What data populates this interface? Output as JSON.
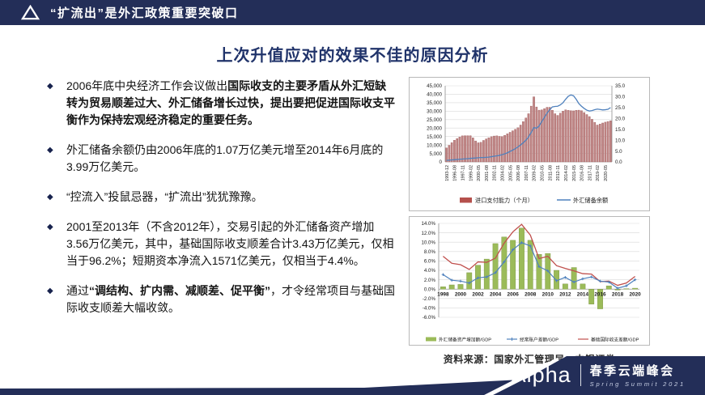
{
  "topbar": {
    "title": "“扩流出”是外汇政策重要突破口"
  },
  "page": {
    "title": "上次升值应对的效果不佳的原因分析",
    "source": "资料来源：国家外汇管理局，中银证券"
  },
  "bullets": [
    {
      "segments": [
        {
          "text": "2006年底中央经济工作会议做出",
          "bold": false
        },
        {
          "text": "国际收支的主要矛盾从外汇短缺转为贸易顺差过大、外汇储备增长过快，提出要把促进国际收支平衡作为保持宏观经济稳定的重要任务。",
          "bold": true
        }
      ]
    },
    {
      "segments": [
        {
          "text": "外汇储备余额仍由2006年底的1.07万亿美元增至2014年6月底的3.99万亿美元。",
          "bold": false
        }
      ]
    },
    {
      "segments": [
        {
          "text": "“控流入”投鼠忌器，“扩流出”犹犹豫豫。",
          "bold": false
        }
      ]
    },
    {
      "segments": [
        {
          "text": "2001至2013年（不含2012年），交易引起的外汇储备资产增加3.56万亿美元，其中，基础国际收支顺差合计3.43万亿美元，仅相当于96.2%；短期资本净流入1571亿美元，仅相当于4.4%。",
          "bold": false
        }
      ]
    },
    {
      "segments": [
        {
          "text": "通过",
          "bold": false
        },
        {
          "text": "“调结构、扩内需、减顺差、促平衡”",
          "bold": true
        },
        {
          "text": "，才令经常项目与基础国际收支顺差大幅收敛。",
          "bold": false
        }
      ]
    }
  ],
  "chart_data": [
    {
      "type": "bar+line",
      "title": "",
      "left_axis": {
        "min": 0,
        "max": 45000,
        "step": 5000
      },
      "right_axis": {
        "min": 0,
        "max": 35,
        "step": 5
      },
      "x_tick_labels": [
        "1993-12",
        "1996-08",
        "1997-11",
        "1999-02",
        "2000-05",
        "2001-08",
        "2002-11",
        "2004-02",
        "2005-05",
        "2006-08",
        "2007-11",
        "2009-02",
        "2010-05",
        "2011-08",
        "2012-11",
        "2014-02",
        "2015-05",
        "2016-08",
        "2017-11",
        "2019-02",
        "2020-05"
      ],
      "series": [
        {
          "name": "进口支付能力（个月）",
          "type": "bar",
          "axis": "left",
          "color": "#c08585",
          "values": [
            8300,
            9800,
            11400,
            12800,
            13800,
            14700,
            15400,
            15500,
            15500,
            15500,
            14200,
            12400,
            11300,
            11600,
            12700,
            13600,
            14300,
            14900,
            15300,
            15400,
            15100,
            15000,
            15700,
            16600,
            17500,
            18400,
            19300,
            20200,
            21800,
            23800,
            26000,
            28500,
            33000,
            38500,
            32500,
            30600,
            30800,
            31500,
            32300,
            32300,
            30500,
            28500,
            27500,
            28800,
            30000,
            30800,
            30500,
            30300,
            30200,
            30500,
            30600,
            30300,
            29200,
            28000,
            26800,
            25200,
            23400,
            21800,
            22400,
            23000,
            23500,
            23900,
            24300
          ]
        },
        {
          "name": "外汇储备余额",
          "type": "line",
          "axis": "right",
          "color": "#4f81bd",
          "values": [
            0.7,
            0.8,
            0.9,
            1.0,
            1.1,
            1.2,
            1.3,
            1.4,
            1.5,
            1.6,
            1.7,
            1.8,
            1.9,
            2.0,
            2.0,
            2.1,
            2.2,
            2.4,
            2.6,
            2.8,
            3.0,
            3.3,
            3.7,
            4.2,
            4.8,
            5.4,
            6.1,
            6.9,
            7.8,
            8.8,
            10.0,
            11.5,
            13.5,
            15.8,
            15.5,
            16.5,
            18.5,
            20.5,
            22.5,
            24.0,
            25.3,
            25.5,
            25.6,
            26.2,
            27.2,
            28.8,
            30.2,
            30.8,
            30.4,
            28.8,
            26.8,
            25.6,
            24.6,
            23.8,
            23.4,
            23.6,
            24.0,
            24.3,
            24.1,
            23.9,
            24.0,
            24.2,
            25.0
          ]
        }
      ]
    },
    {
      "type": "bar+2lines",
      "title": "",
      "y_axis": {
        "min": -6,
        "max": 14,
        "step": 2,
        "format": "percent"
      },
      "years": [
        1998,
        1999,
        2000,
        2001,
        2002,
        2003,
        2004,
        2005,
        2006,
        2007,
        2008,
        2009,
        2010,
        2011,
        2012,
        2013,
        2014,
        2015,
        2016,
        2017,
        2018,
        2019,
        2020
      ],
      "x_tick_labels": [
        "1998",
        "2000",
        "2002",
        "2004",
        "2006",
        "2008",
        "2010",
        "2012",
        "2014",
        "2016",
        "2018",
        "2020"
      ],
      "series": [
        {
          "name": "外汇储备资产增加额/GDP",
          "type": "bar",
          "color": "#9bbb59",
          "values": [
            0.5,
            0.9,
            1.0,
            3.5,
            5.1,
            6.4,
            9.7,
            11.1,
            10.4,
            13.0,
            10.4,
            7.4,
            7.6,
            4.0,
            1.1,
            4.6,
            1.1,
            -3.2,
            -4.2,
            0.7,
            -0.2,
            0.1,
            0.2
          ]
        },
        {
          "name": "经常账户差额/GDP",
          "type": "line-marker",
          "color": "#4f81bd",
          "values": [
            3.1,
            1.9,
            1.7,
            1.3,
            2.4,
            2.6,
            3.5,
            5.8,
            8.4,
            9.9,
            9.2,
            4.8,
            3.9,
            1.8,
            2.5,
            1.5,
            2.2,
            2.6,
            1.7,
            1.5,
            0.2,
            0.7,
            2.0
          ]
        },
        {
          "name": "基础国际收支差额/GDP",
          "type": "line",
          "color": "#c0504d",
          "values": [
            7.0,
            5.5,
            5.2,
            4.2,
            5.8,
            5.7,
            6.6,
            9.8,
            12.2,
            13.8,
            11.5,
            6.5,
            7.0,
            5.0,
            4.4,
            3.9,
            3.3,
            3.2,
            1.6,
            1.7,
            0.8,
            1.3,
            2.7
          ]
        }
      ]
    }
  ],
  "footer": {
    "brand": "Alpha",
    "event": "春季云端峰会",
    "subtitle": "Spring Summit 2021"
  },
  "colors": {
    "navy": "#232e58",
    "title_navy": "#20336a",
    "chart1_bar": "#c08585",
    "chart1_bar_edge": "#9b5757",
    "line_blue": "#4f81bd",
    "line_red": "#c0504d",
    "bar_green": "#9bbb59",
    "legend_red": "#b5504c",
    "grid_gray": "#d9d9d9"
  }
}
